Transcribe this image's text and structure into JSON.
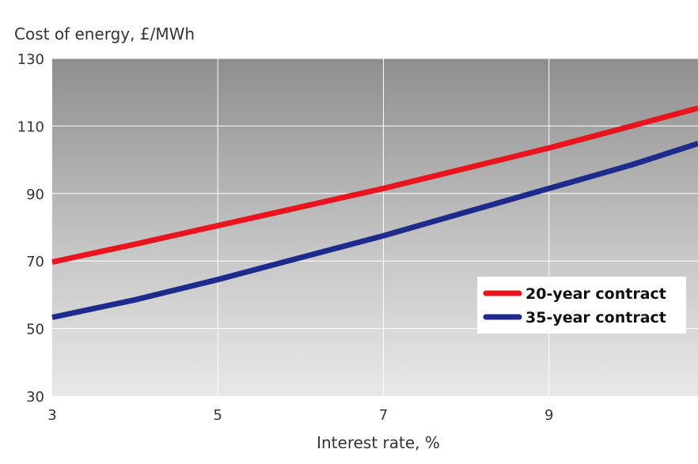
{
  "chart_data": {
    "type": "line",
    "ylabel": "Cost of energy, £/MWh",
    "xlabel": "Interest rate, %",
    "xlim": [
      3,
      10.8
    ],
    "ylim": [
      30,
      130
    ],
    "xticks": [
      3,
      5,
      7,
      9
    ],
    "yticks": [
      30,
      50,
      70,
      90,
      110,
      130
    ],
    "xtick_labels": [
      "3",
      "5",
      "7",
      "9"
    ],
    "ytick_labels": [
      "30",
      "50",
      "70",
      "90",
      "110",
      "130"
    ],
    "grid": true,
    "legend_position": "right",
    "background": "gray gradient",
    "series": [
      {
        "name": "20-year contract",
        "color": "#e8141e",
        "x": [
          3,
          4,
          5,
          6,
          7,
          8,
          9,
          10,
          10.8
        ],
        "y": [
          69.7,
          75.0,
          80.5,
          86.0,
          91.5,
          97.5,
          103.5,
          110.0,
          115.3
        ]
      },
      {
        "name": "35-year contract",
        "color": "#1e2a8c",
        "x": [
          3,
          4,
          5,
          6,
          7,
          8,
          9,
          10,
          10.8
        ],
        "y": [
          53.3,
          58.5,
          64.5,
          71.0,
          77.5,
          84.5,
          91.5,
          98.5,
          104.8
        ]
      }
    ]
  }
}
